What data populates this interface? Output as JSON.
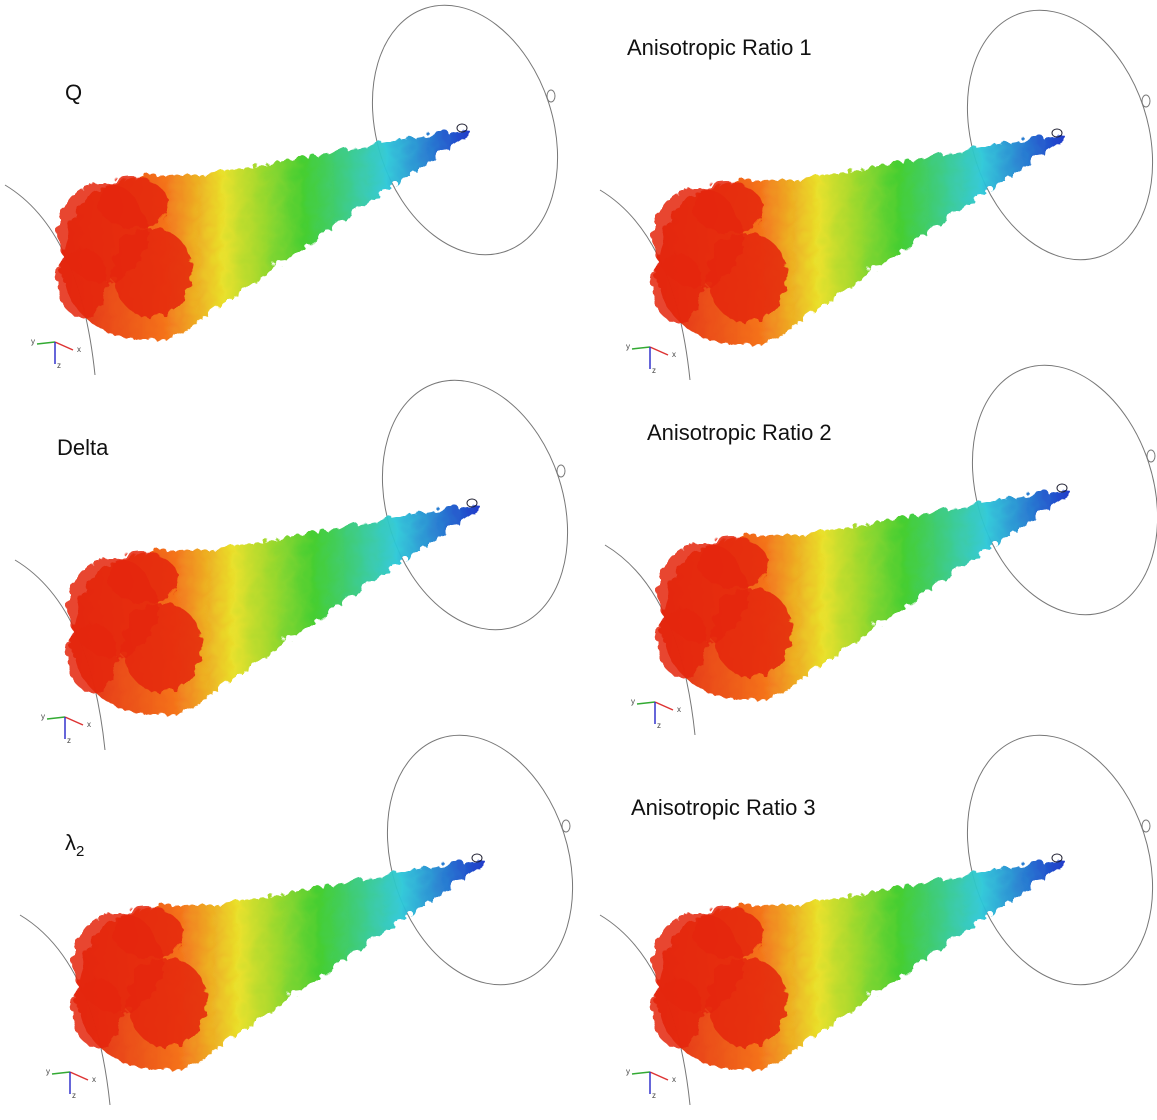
{
  "panels": [
    {
      "label": "Q"
    },
    {
      "label": "Anisotropic Ratio 1"
    },
    {
      "label": "Delta"
    },
    {
      "label": "Anisotropic Ratio 2"
    },
    {
      "label": {
        "symbol": "λ",
        "subscript": "2"
      }
    },
    {
      "label": "Anisotropic Ratio 3"
    }
  ],
  "axis_labels": [
    "x",
    "y",
    "z"
  ]
}
